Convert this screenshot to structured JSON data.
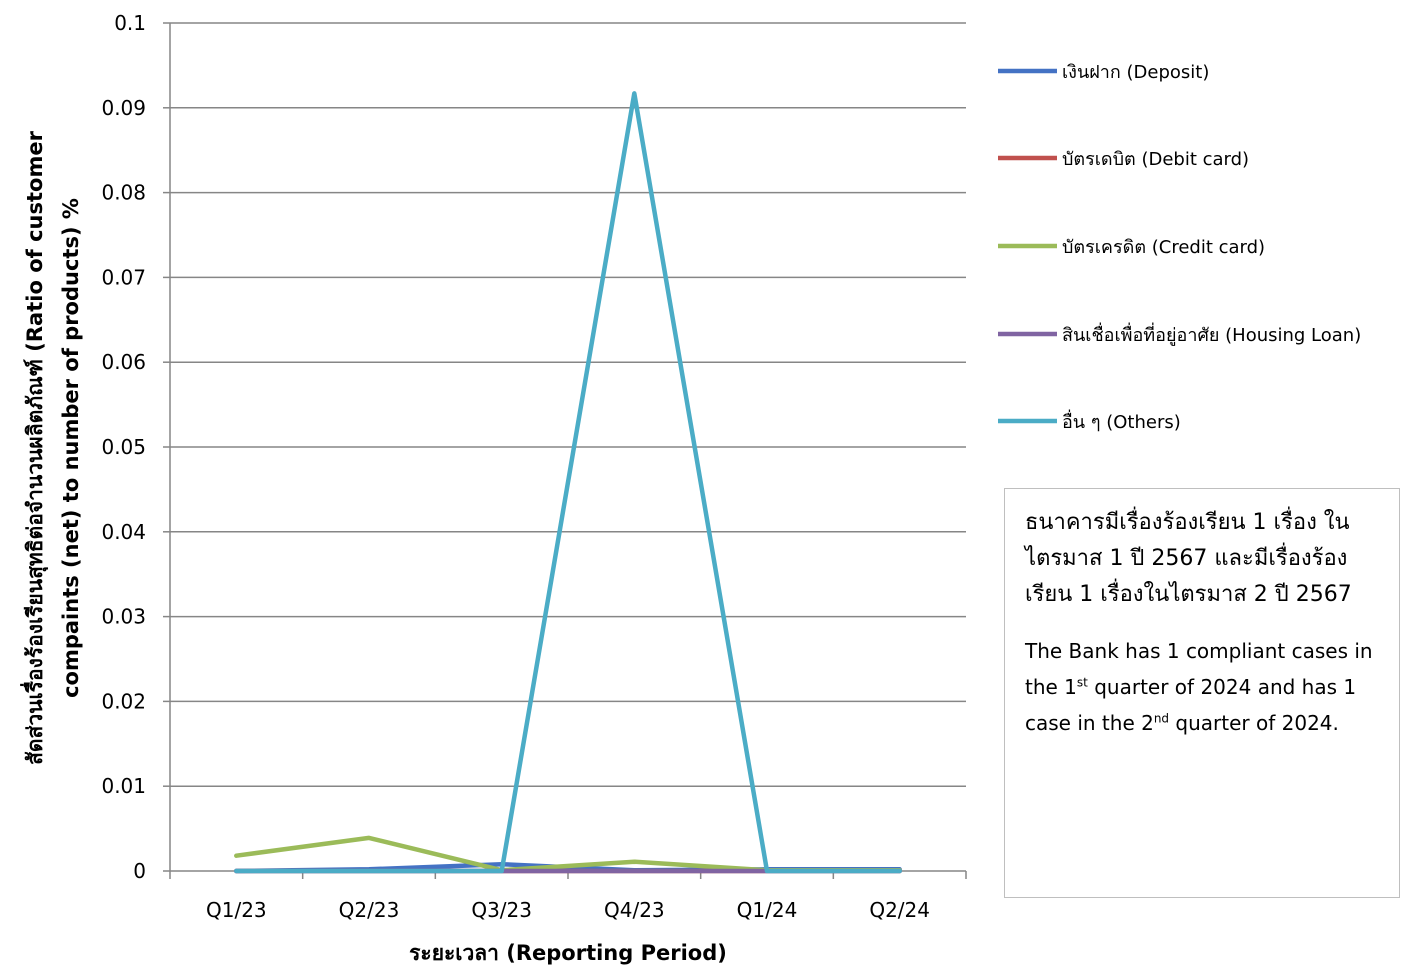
{
  "chart_data": {
    "type": "line",
    "categories": [
      "Q1/23",
      "Q2/23",
      "Q3/23",
      "Q4/23",
      "Q1/24",
      "Q2/24"
    ],
    "series": [
      {
        "name": "เงินฝาก (Deposit)",
        "color": "#4472c4",
        "values": [
          0,
          0.0002,
          0.0008,
          0.0001,
          0.0002,
          0.0002
        ]
      },
      {
        "name": "บัตรเดบิต (Debit card)",
        "color": "#c0504d",
        "values": [
          0,
          0,
          0,
          0,
          0,
          0
        ]
      },
      {
        "name": "บัตรเครดิต (Credit card)",
        "color": "#9bbb59",
        "values": [
          0.0018,
          0.0039,
          0.0001,
          0.0011,
          0.0001,
          0.0001
        ]
      },
      {
        "name": "สินเชื่อเพื่อที่อยู่อาศัย (Housing Loan)",
        "color": "#8064a2",
        "values": [
          0,
          0,
          0,
          0,
          0,
          0
        ]
      },
      {
        "name": "อื่น ๆ (Others)",
        "color": "#4bacc6",
        "values": [
          0,
          0,
          0,
          0.0917,
          0,
          0
        ]
      }
    ],
    "ylim": [
      0,
      0.1
    ],
    "yticks": [
      "0",
      "0.01",
      "0.02",
      "0.03",
      "0.04",
      "0.05",
      "0.06",
      "0.07",
      "0.08",
      "0.09",
      "0.1"
    ],
    "xlabel": "ระยะเวลา (Reporting Period)",
    "ylabel_line1": "สัดส่วนเรื่องร้องเรียนสุทธิต่อจำนวนผลิตภัณฑ์ (Ratio of customer",
    "ylabel_line2": "compaints (net) to number of products) %",
    "grid": true,
    "legend_position": "right"
  },
  "note": {
    "thai": "ธนาคารมีเรื่องร้องเรียน 1 เรื่อง ในไตรมาส 1 ปี 2567 และมีเรื่องร้องเรียน 1 เรื่องในไตรมาส 2 ปี 2567",
    "en_part1": "The Bank has 1 compliant cases in the 1",
    "en_sup1": "st",
    "en_part2": " quarter of 2024 and has 1 case in the 2",
    "en_sup2": "nd",
    "en_part3": " quarter of 2024."
  }
}
